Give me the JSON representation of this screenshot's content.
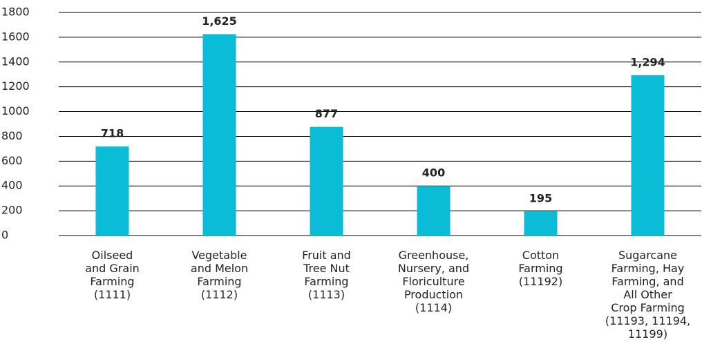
{
  "chart_data": {
    "type": "bar",
    "categories": [
      "Oilseed\nand Grain\nFarming\n(1111)",
      "Vegetable\nand Melon\nFarming\n(1112)",
      "Fruit and\nTree Nut\nFarming\n(1113)",
      "Greenhouse,\nNursery, and\nFloriculture\nProduction\n(1114)",
      "Cotton\nFarming\n(11192)",
      "Sugarcane\nFarming, Hay\nFarming, and\nAll Other\nCrop Farming\n(11193, 11194,\n11199)"
    ],
    "values": [
      718,
      1625,
      877,
      400,
      195,
      1294
    ],
    "value_labels": [
      "718",
      "1,625",
      "877",
      "400",
      "195",
      "1,294"
    ],
    "color": "#0abcd6",
    "ylim": [
      0,
      1800
    ],
    "yticks": [
      0,
      200,
      400,
      600,
      800,
      1000,
      1200,
      1400,
      1600,
      1800
    ],
    "grid": true
  }
}
